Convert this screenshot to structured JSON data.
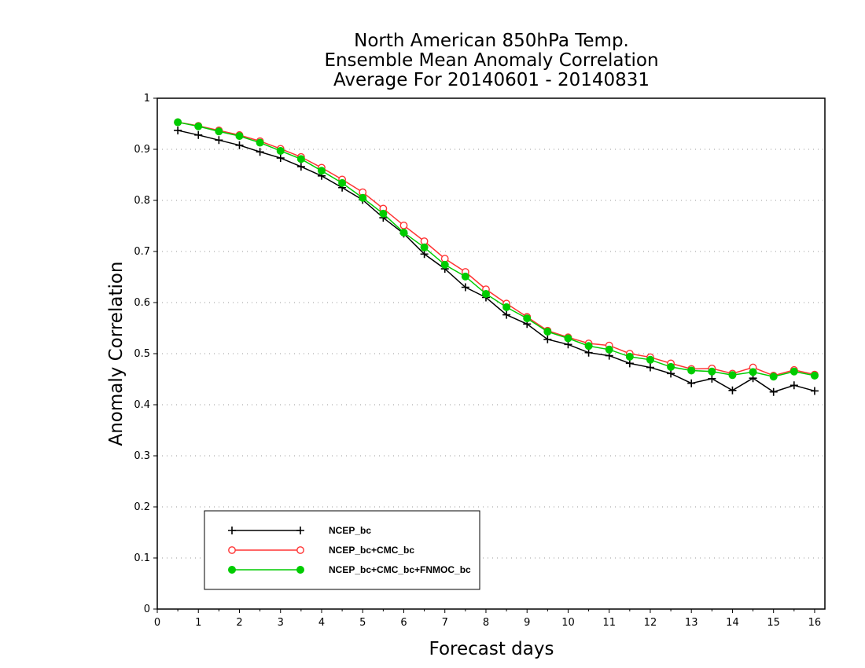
{
  "chart_data": {
    "type": "line",
    "title": [
      "North American 850hPa Temp.",
      "Ensemble Mean Anomaly Correlation",
      "Average For 20140601 - 20140831"
    ],
    "xlabel": "Forecast days",
    "ylabel": "Anomaly Correlation",
    "xlim": [
      0,
      16.25
    ],
    "ylim": [
      0,
      1
    ],
    "xticks": [
      "0",
      "1",
      "2",
      "3",
      "4",
      "5",
      "6",
      "7",
      "8",
      "9",
      "10",
      "11",
      "12",
      "13",
      "14",
      "15",
      "16"
    ],
    "yticks": [
      "0",
      "0.1",
      "0.2",
      "0.3",
      "0.4",
      "0.5",
      "0.6",
      "0.7",
      "0.8",
      "0.9",
      "1"
    ],
    "grid": "horizontal dotted",
    "legend_position": "bottom-left",
    "x": [
      0.5,
      1,
      1.5,
      2,
      2.5,
      3,
      3.5,
      4,
      4.5,
      5,
      5.5,
      6,
      6.5,
      7,
      7.5,
      8,
      8.5,
      9,
      9.5,
      10,
      10.5,
      11,
      11.5,
      12,
      12.5,
      13,
      13.5,
      14,
      14.5,
      15,
      15.5,
      16
    ],
    "series": [
      {
        "name": "NCEP_bc",
        "color": "#000000",
        "marker": "plus",
        "values": [
          0.937,
          0.928,
          0.918,
          0.908,
          0.895,
          0.883,
          0.866,
          0.848,
          0.825,
          0.801,
          0.766,
          0.735,
          0.695,
          0.666,
          0.63,
          0.61,
          0.576,
          0.558,
          0.528,
          0.518,
          0.502,
          0.496,
          0.481,
          0.473,
          0.461,
          0.442,
          0.451,
          0.428,
          0.452,
          0.425,
          0.438,
          0.427
        ]
      },
      {
        "name": "NCEP_bc+CMC_bc",
        "color": "#ff3333",
        "marker": "open-circle",
        "values": [
          0.953,
          0.946,
          0.937,
          0.928,
          0.916,
          0.901,
          0.885,
          0.864,
          0.841,
          0.816,
          0.784,
          0.751,
          0.72,
          0.686,
          0.66,
          0.626,
          0.598,
          0.572,
          0.545,
          0.532,
          0.52,
          0.516,
          0.5,
          0.493,
          0.481,
          0.47,
          0.471,
          0.461,
          0.473,
          0.457,
          0.468,
          0.459
        ]
      },
      {
        "name": "NCEP_bc+CMC_bc+FNMOC_bc",
        "color": "#00cc00",
        "marker": "filled-circle",
        "values": [
          0.953,
          0.945,
          0.935,
          0.926,
          0.913,
          0.897,
          0.881,
          0.858,
          0.834,
          0.805,
          0.774,
          0.737,
          0.708,
          0.674,
          0.651,
          0.617,
          0.591,
          0.569,
          0.543,
          0.53,
          0.515,
          0.508,
          0.494,
          0.488,
          0.474,
          0.467,
          0.465,
          0.458,
          0.464,
          0.455,
          0.465,
          0.457
        ]
      }
    ]
  }
}
